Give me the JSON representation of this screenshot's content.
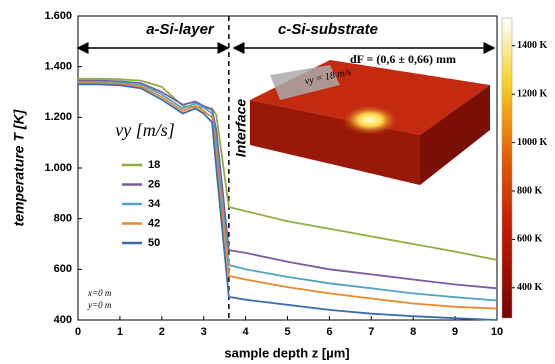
{
  "chart_data": {
    "type": "line",
    "x_label": "sample depth z [µm]",
    "y_label": "temperature T [K]",
    "legend_title": "vy [m/s]",
    "x": [
      0,
      0.5,
      1,
      1.5,
      2,
      2.5,
      2.8,
      3.0,
      3.2,
      3.3,
      3.6,
      4,
      5,
      6,
      7,
      8,
      9,
      10
    ],
    "series": [
      {
        "name": "18",
        "color": "#8fae3f",
        "values": [
          1352,
          1352,
          1350,
          1345,
          1320,
          1245,
          1240,
          1238,
          1235,
          1210,
          846,
          830,
          790,
          760,
          730,
          700,
          670,
          637
        ]
      },
      {
        "name": "26",
        "color": "#7a5aa0",
        "values": [
          1345,
          1345,
          1342,
          1335,
          1300,
          1250,
          1262,
          1245,
          1230,
          1150,
          676,
          665,
          630,
          600,
          580,
          560,
          540,
          525
        ]
      },
      {
        "name": "34",
        "color": "#4fa3c7",
        "values": [
          1340,
          1340,
          1337,
          1330,
          1290,
          1235,
          1255,
          1240,
          1215,
          1100,
          617,
          600,
          570,
          545,
          525,
          505,
          490,
          477
        ]
      },
      {
        "name": "42",
        "color": "#e68a2e",
        "values": [
          1335,
          1335,
          1332,
          1322,
          1280,
          1225,
          1245,
          1225,
          1200,
          1050,
          574,
          560,
          530,
          505,
          485,
          465,
          452,
          445
        ]
      },
      {
        "name": "50",
        "color": "#3b6db0",
        "values": [
          1330,
          1330,
          1326,
          1315,
          1270,
          1215,
          1235,
          1215,
          1180,
          1000,
          491,
          480,
          460,
          440,
          425,
          415,
          407,
          400
        ]
      }
    ],
    "xlim": [
      0,
      10
    ],
    "xticks": [
      0,
      1,
      2,
      3,
      4,
      5,
      6,
      7,
      8,
      9,
      10
    ],
    "ylim": [
      400,
      1600
    ],
    "yticks": [
      {
        "value": 400,
        "label": "400"
      },
      {
        "value": 600,
        "label": "600"
      },
      {
        "value": 800,
        "label": "800"
      },
      {
        "value": 1000,
        "label": "1.000"
      },
      {
        "value": 1200,
        "label": "1.200"
      },
      {
        "value": 1400,
        "label": "1.400"
      },
      {
        "value": 1600,
        "label": "1.600"
      }
    ],
    "interface_z": 3.6,
    "region_labels": [
      "a-Si-layer",
      "c-Si-substrate"
    ],
    "interface_label": "Interface",
    "position_notes": [
      "x=0 m",
      "y=0 m"
    ],
    "inset_labels": [
      "dF = (0,6 ± 0,66) mm",
      "vy = 18 m/s"
    ],
    "colorbar": {
      "lim": [
        275,
        1515
      ],
      "ticks": [
        {
          "value": 400,
          "label": "400 K"
        },
        {
          "value": 600,
          "label": "600 K"
        },
        {
          "value": 800,
          "label": "800 K"
        },
        {
          "value": 1000,
          "label": "1000 K"
        },
        {
          "value": 1200,
          "label": "1200 K"
        },
        {
          "value": 1400,
          "label": "1400 K"
        }
      ]
    }
  }
}
